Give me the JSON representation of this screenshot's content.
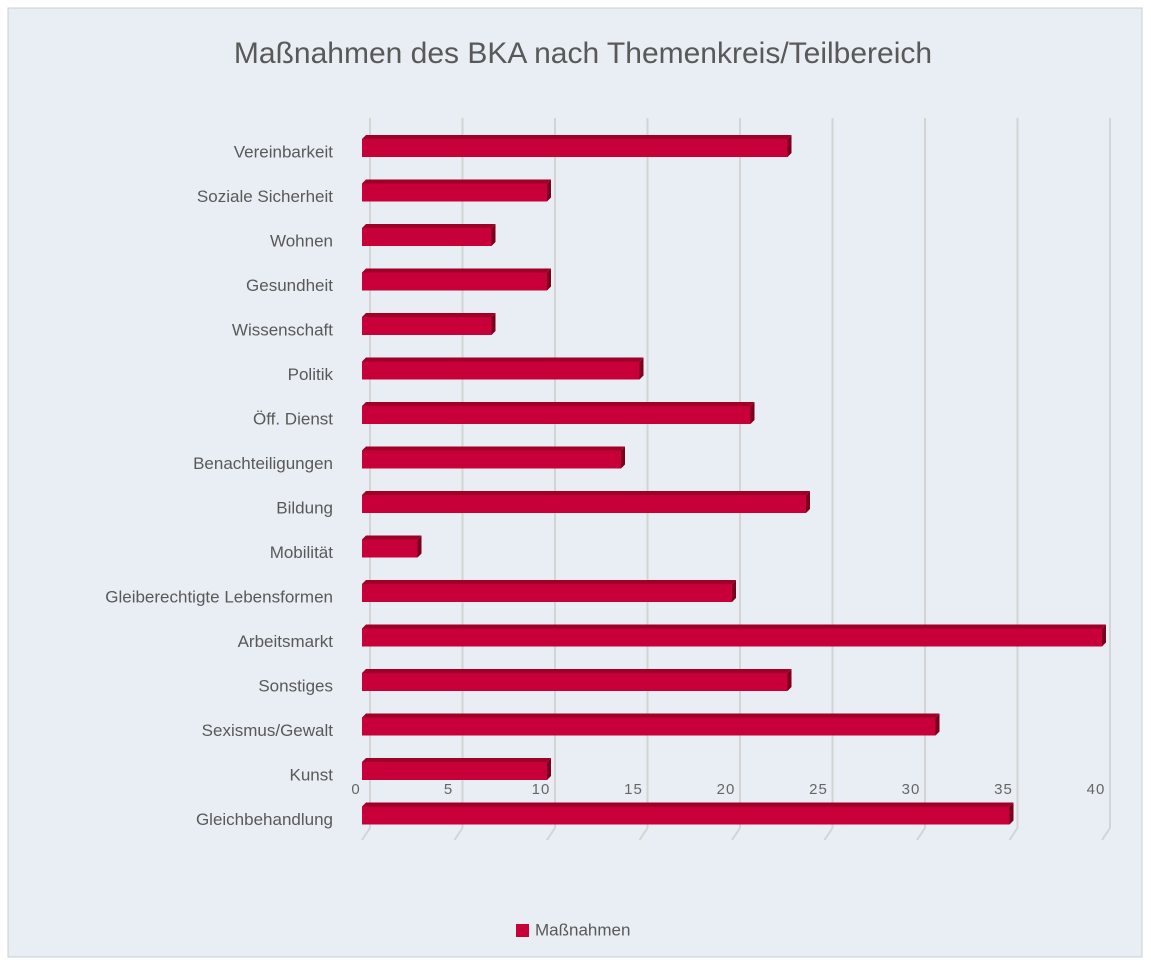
{
  "chart_data": {
    "type": "bar",
    "orientation": "horizontal",
    "title": "Maßnahmen des BKA nach Themenkreis/Teilbereich",
    "categories": [
      "Vereinbarkeit",
      "Soziale Sicherheit",
      "Wohnen",
      "Gesundheit",
      "Wissenschaft",
      "Politik",
      "Öff. Dienst",
      "Benachteiligungen",
      "Bildung",
      "Mobilität",
      "Gleiberechtigte Lebensformen",
      "Arbeitsmarkt",
      "Sonstiges",
      "Sexismus/Gewalt",
      "Kunst",
      "Gleichbehandlung"
    ],
    "series": [
      {
        "name": "Maßnahmen",
        "color": "#c8003a",
        "values": [
          23,
          10,
          7,
          10,
          7,
          15,
          21,
          14,
          24,
          3,
          20,
          40,
          23,
          31,
          10,
          35
        ]
      }
    ],
    "xlim": [
      0,
      40
    ],
    "xticks": [
      0,
      5,
      10,
      15,
      20,
      25,
      30,
      35,
      40
    ],
    "grid": true,
    "legend": "bottom"
  }
}
